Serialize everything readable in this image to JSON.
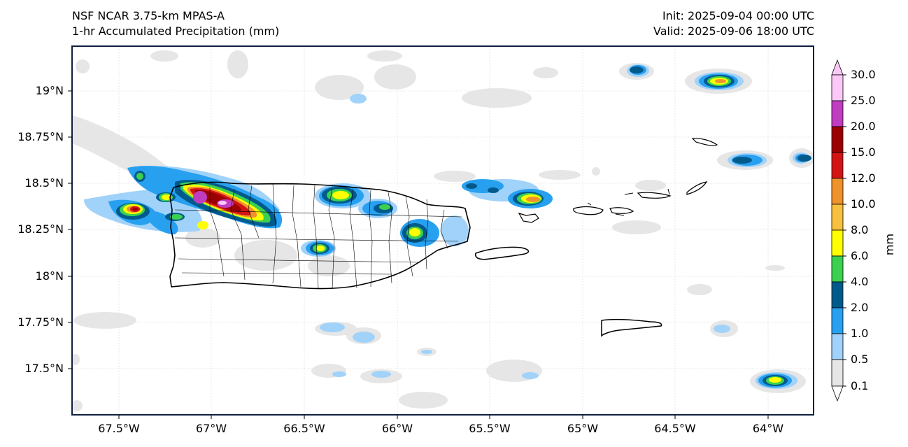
{
  "header": {
    "title_line1": "NSF NCAR 3.75-km MPAS-A",
    "title_line2": "1-hr Accumulated Precipitation (mm)",
    "init_line": "Init: 2025-09-04 00:00 UTC",
    "valid_line": "Valid: 2025-09-06 18:00 UTC"
  },
  "axes": {
    "lat_labels": [
      "19°N",
      "18.75°N",
      "18.5°N",
      "18.25°N",
      "18°N",
      "17.75°N",
      "17.5°N"
    ],
    "lon_labels": [
      "67.5°W",
      "67°W",
      "66.5°W",
      "66°W",
      "65.5°W",
      "65°W",
      "64.5°W",
      "64°W"
    ]
  },
  "colorbar": {
    "unit": "mm",
    "labels": [
      "30.0",
      "25.0",
      "20.0",
      "15.0",
      "12.0",
      "10.0",
      "8.0",
      "6.0",
      "4.0",
      "2.0",
      "1.0",
      "0.5",
      "0.1"
    ],
    "colors": [
      "#fcc8f8",
      "#c03cc0",
      "#9c0000",
      "#d21414",
      "#f0922c",
      "#f8c040",
      "#ffff00",
      "#3cd050",
      "#005a8c",
      "#28a0f0",
      "#a0d2fa",
      "#e6e6e6"
    ]
  },
  "colors": {
    "light_gray": "#e6e6e6",
    "light_blue": "#a0d2fa",
    "blue": "#28a0f0",
    "dark_blue": "#005a8c",
    "green": "#3cd050",
    "yellow": "#ffff00",
    "orange_light": "#f8c040",
    "orange": "#f0922c",
    "red": "#d21414",
    "dark_red": "#9c0000",
    "magenta": "#c03cc0",
    "pink": "#fcc8f8"
  }
}
